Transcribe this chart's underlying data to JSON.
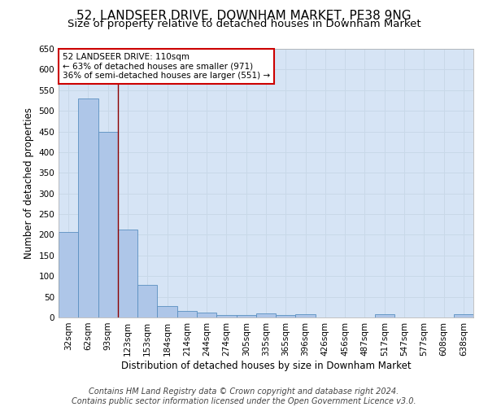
{
  "title": "52, LANDSEER DRIVE, DOWNHAM MARKET, PE38 9NG",
  "subtitle": "Size of property relative to detached houses in Downham Market",
  "xlabel": "Distribution of detached houses by size in Downham Market",
  "ylabel": "Number of detached properties",
  "categories": [
    "32sqm",
    "62sqm",
    "93sqm",
    "123sqm",
    "153sqm",
    "184sqm",
    "214sqm",
    "244sqm",
    "274sqm",
    "305sqm",
    "335sqm",
    "365sqm",
    "396sqm",
    "426sqm",
    "456sqm",
    "487sqm",
    "517sqm",
    "547sqm",
    "577sqm",
    "608sqm",
    "638sqm"
  ],
  "values": [
    207,
    530,
    450,
    212,
    78,
    27,
    15,
    12,
    5,
    5,
    10,
    5,
    7,
    0,
    0,
    0,
    7,
    0,
    0,
    0,
    7
  ],
  "bar_color": "#aec6e8",
  "bar_edge_color": "#5a8fc0",
  "grid_color": "#c8d8e8",
  "background_color": "#d6e4f5",
  "vline_x_index": 2.5,
  "vline_color": "#8b0000",
  "annotation_text": "52 LANDSEER DRIVE: 110sqm\n← 63% of detached houses are smaller (971)\n36% of semi-detached houses are larger (551) →",
  "annotation_box_facecolor": "#ffffff",
  "annotation_box_edgecolor": "#cc0000",
  "footer_line1": "Contains HM Land Registry data © Crown copyright and database right 2024.",
  "footer_line2": "Contains public sector information licensed under the Open Government Licence v3.0.",
  "ylim": [
    0,
    650
  ],
  "yticks": [
    0,
    50,
    100,
    150,
    200,
    250,
    300,
    350,
    400,
    450,
    500,
    550,
    600,
    650
  ],
  "title_fontsize": 11,
  "subtitle_fontsize": 9.5,
  "axis_label_fontsize": 8.5,
  "tick_fontsize": 7.5,
  "annotation_fontsize": 7.5,
  "footer_fontsize": 7
}
